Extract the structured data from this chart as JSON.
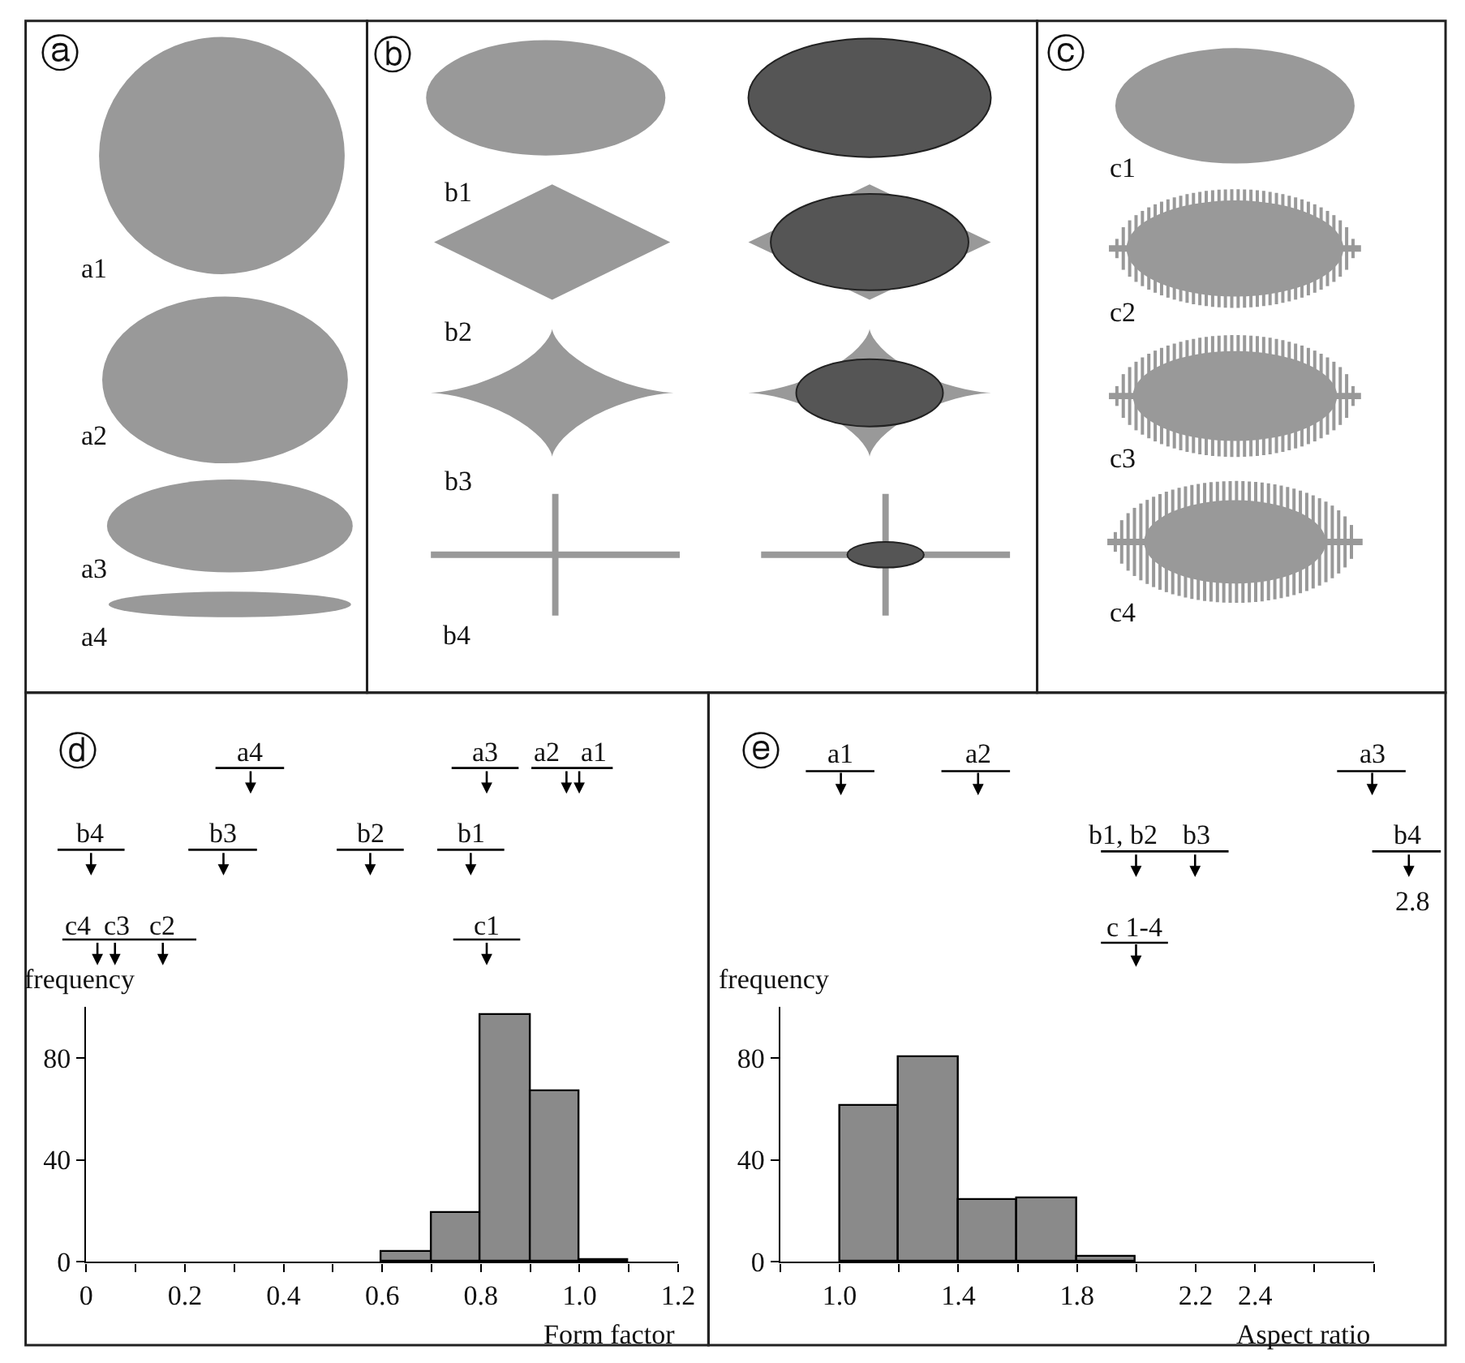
{
  "chart_data": [
    {
      "type": "other",
      "annotations": [
        "ⓐ",
        "a1",
        "a2",
        "a3",
        "a4",
        "ⓑ",
        "b1",
        "b2",
        "b3",
        "b4",
        "ⓒ",
        "c1",
        "c2",
        "c3",
        "c4"
      ]
    },
    {
      "type": "histogram",
      "title": "ⓓ",
      "xlabel": "Form factor",
      "ylabel": "frequency",
      "bins": [
        0.6,
        0.7,
        0.8,
        0.9,
        1.0,
        1.1
      ],
      "values": [
        4,
        19,
        97,
        67,
        1
      ],
      "color": "#8a8a8a",
      "xlim": [
        0,
        1.2
      ],
      "ylim": [
        0,
        100
      ],
      "xticks": [
        0,
        {
          "value": 0.1,
          "label": null
        },
        0.2,
        {
          "value": 0.3,
          "label": null
        },
        0.4,
        {
          "value": 0.5,
          "label": null
        },
        0.6,
        {
          "value": 0.7,
          "label": null
        },
        0.8,
        {
          "value": 0.9,
          "label": null
        },
        {
          "value": 1.0,
          "label": "1.0"
        },
        {
          "value": 1.1,
          "label": null
        },
        1.2
      ],
      "yticks": [
        0,
        40,
        80
      ],
      "annotations": [
        "a4",
        "a3",
        "a2",
        "a1",
        "b4",
        "b3",
        "b2",
        "b1",
        "c4",
        "c3",
        "c2",
        "c1"
      ]
    },
    {
      "type": "histogram",
      "title": "ⓔ",
      "xlabel": "Aspect ratio",
      "ylabel": "frequency",
      "bins": [
        1.0,
        1.2,
        1.4,
        1.6,
        1.8,
        2.0
      ],
      "values": [
        61,
        80,
        24,
        25,
        2
      ],
      "color": "#8a8a8a",
      "ylim": [
        0,
        100
      ],
      "xlim": [
        0.8,
        2.8
      ],
      "xticks": [
        {
          "value": 0.8,
          "label": null
        },
        {
          "value": 1.0,
          "label": "1.0"
        },
        {
          "value": 1.2,
          "label": null
        },
        1.4,
        {
          "value": 1.6,
          "label": null
        },
        1.8,
        {
          "value": 2.0,
          "label": null
        },
        2.2,
        2.4,
        {
          "value": 2.6,
          "label": null
        },
        {
          "value": 2.8,
          "label": null
        }
      ],
      "yticks": [
        0,
        40,
        80
      ],
      "annotations": [
        "a1",
        "a2",
        "a3",
        "b1, b2",
        "b3",
        "c 1-4",
        "b4",
        "2.8"
      ]
    }
  ]
}
